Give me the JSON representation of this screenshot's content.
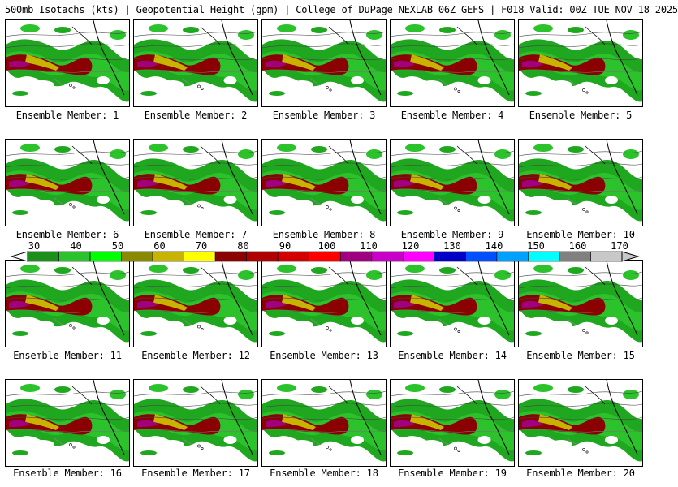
{
  "header": {
    "title": "500mb Isotachs (kts) | Geopotential Height (gpm) | College of DuPage NEXLAB   06Z GEFS | F018 Valid: 00Z TUE NOV 18 2025"
  },
  "members": [
    "Ensemble Member: 1",
    "Ensemble Member: 2",
    "Ensemble Member: 3",
    "Ensemble Member: 4",
    "Ensemble Member: 5",
    "Ensemble Member: 6",
    "Ensemble Member: 7",
    "Ensemble Member: 8",
    "Ensemble Member: 9",
    "Ensemble Member: 10",
    "Ensemble Member: 11",
    "Ensemble Member: 12",
    "Ensemble Member: 13",
    "Ensemble Member: 14",
    "Ensemble Member: 15",
    "Ensemble Member: 16",
    "Ensemble Member: 17",
    "Ensemble Member: 18",
    "Ensemble Member: 19",
    "Ensemble Member: 20"
  ],
  "colorbar": {
    "ticks": [
      "30",
      "40",
      "50",
      "60",
      "70",
      "80",
      "90",
      "100",
      "110",
      "120",
      "130",
      "140",
      "150",
      "160",
      "170"
    ],
    "colors": [
      "#1a8f1a",
      "#2cc22c",
      "#00ff00",
      "#8a8a00",
      "#c8b400",
      "#ffff00",
      "#8b0000",
      "#b00000",
      "#d40000",
      "#ff0000",
      "#a00080",
      "#c800c8",
      "#ff00ff",
      "#0000c8",
      "#0050ff",
      "#00a0ff",
      "#00ffff",
      "#808080",
      "#c8c8c8"
    ]
  }
}
